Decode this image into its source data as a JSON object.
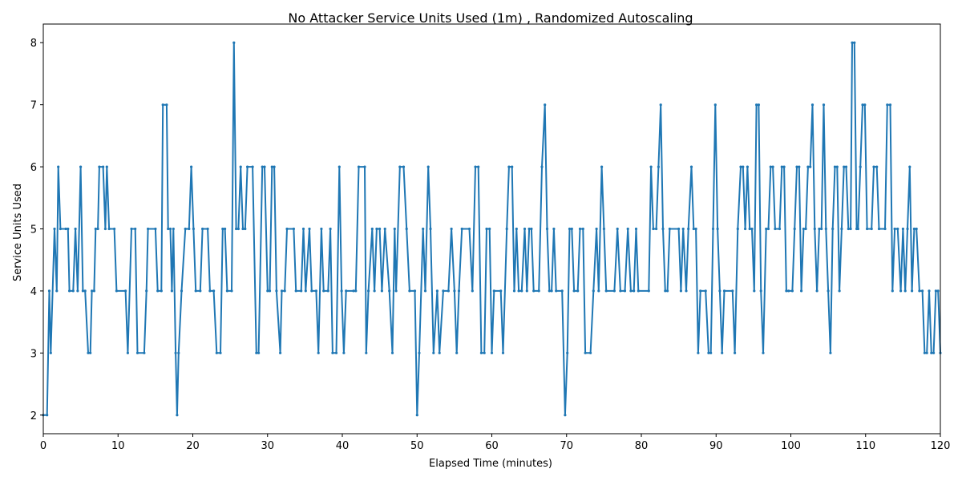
{
  "chart_data": {
    "type": "line",
    "title": "No Attacker Service Units Used (1m) , Randomized Autoscaling",
    "xlabel": "Elapsed Time (minutes)",
    "ylabel": "Service Units Used",
    "xlim": [
      0,
      120
    ],
    "ylim": [
      1.7,
      8.3
    ],
    "xticks": [
      0,
      10,
      20,
      30,
      40,
      50,
      60,
      70,
      80,
      90,
      100,
      110,
      120
    ],
    "yticks": [
      2,
      3,
      4,
      5,
      6,
      7,
      8
    ],
    "grid": false,
    "legend": "none",
    "series": [
      {
        "color": "#1f77b4",
        "marker": "dot",
        "points": [
          [
            0,
            2
          ],
          [
            0.5,
            2
          ],
          [
            0.8,
            4
          ],
          [
            1.0,
            3
          ],
          [
            1.5,
            5
          ],
          [
            1.8,
            4
          ],
          [
            2.0,
            6
          ],
          [
            2.3,
            5
          ],
          [
            3.0,
            5
          ],
          [
            3.3,
            5
          ],
          [
            3.5,
            4
          ],
          [
            4.0,
            4
          ],
          [
            4.3,
            5
          ],
          [
            4.6,
            4
          ],
          [
            5.0,
            6
          ],
          [
            5.3,
            4
          ],
          [
            5.6,
            4
          ],
          [
            6.0,
            3
          ],
          [
            6.3,
            3
          ],
          [
            6.5,
            4
          ],
          [
            6.8,
            4
          ],
          [
            7.0,
            5
          ],
          [
            7.3,
            5
          ],
          [
            7.5,
            6
          ],
          [
            8.0,
            6
          ],
          [
            8.3,
            5
          ],
          [
            8.5,
            6
          ],
          [
            8.8,
            5
          ],
          [
            9.5,
            5
          ],
          [
            9.8,
            4
          ],
          [
            11.0,
            4
          ],
          [
            11.3,
            3
          ],
          [
            11.8,
            5
          ],
          [
            12.3,
            5
          ],
          [
            12.6,
            3
          ],
          [
            13.5,
            3
          ],
          [
            13.8,
            4
          ],
          [
            14.0,
            5
          ],
          [
            15.0,
            5
          ],
          [
            15.3,
            4
          ],
          [
            15.8,
            4
          ],
          [
            16.0,
            7
          ],
          [
            16.5,
            7
          ],
          [
            16.7,
            5
          ],
          [
            17.0,
            5
          ],
          [
            17.2,
            4
          ],
          [
            17.4,
            5
          ],
          [
            17.7,
            3
          ],
          [
            17.9,
            2
          ],
          [
            18.1,
            3
          ],
          [
            18.5,
            4
          ],
          [
            19.0,
            5
          ],
          [
            19.5,
            5
          ],
          [
            19.8,
            6
          ],
          [
            20.1,
            5
          ],
          [
            20.4,
            4
          ],
          [
            21.0,
            4
          ],
          [
            21.3,
            5
          ],
          [
            22.0,
            5
          ],
          [
            22.3,
            4
          ],
          [
            22.8,
            4
          ],
          [
            23.2,
            3
          ],
          [
            23.7,
            3
          ],
          [
            24.0,
            5
          ],
          [
            24.3,
            5
          ],
          [
            24.6,
            4
          ],
          [
            25.2,
            4
          ],
          [
            25.5,
            8
          ],
          [
            25.8,
            5
          ],
          [
            26.1,
            5
          ],
          [
            26.4,
            6
          ],
          [
            26.7,
            5
          ],
          [
            27.0,
            5
          ],
          [
            27.3,
            6
          ],
          [
            28.0,
            6
          ],
          [
            28.5,
            3
          ],
          [
            28.8,
            3
          ],
          [
            29.3,
            6
          ],
          [
            29.6,
            6
          ],
          [
            30.0,
            4
          ],
          [
            30.3,
            4
          ],
          [
            30.6,
            6
          ],
          [
            30.9,
            6
          ],
          [
            31.2,
            4
          ],
          [
            31.7,
            3
          ],
          [
            31.9,
            4
          ],
          [
            32.3,
            4
          ],
          [
            32.6,
            5
          ],
          [
            33.5,
            5
          ],
          [
            33.8,
            4
          ],
          [
            34.5,
            4
          ],
          [
            34.8,
            5
          ],
          [
            35.1,
            4
          ],
          [
            35.6,
            5
          ],
          [
            35.9,
            4
          ],
          [
            36.5,
            4
          ],
          [
            36.8,
            3
          ],
          [
            37.2,
            5
          ],
          [
            37.5,
            4
          ],
          [
            38.1,
            4
          ],
          [
            38.4,
            5
          ],
          [
            38.7,
            3
          ],
          [
            39.2,
            3
          ],
          [
            39.6,
            6
          ],
          [
            39.9,
            4
          ],
          [
            40.2,
            3
          ],
          [
            40.5,
            4
          ],
          [
            41.5,
            4
          ],
          [
            41.8,
            4
          ],
          [
            42.2,
            6
          ],
          [
            43.0,
            6
          ],
          [
            43.2,
            3
          ],
          [
            43.5,
            4
          ],
          [
            44.0,
            5
          ],
          [
            44.3,
            4
          ],
          [
            44.6,
            5
          ],
          [
            45.0,
            5
          ],
          [
            45.3,
            4
          ],
          [
            45.7,
            5
          ],
          [
            46.3,
            4
          ],
          [
            46.7,
            3
          ],
          [
            47.0,
            5
          ],
          [
            47.2,
            4
          ],
          [
            47.7,
            6
          ],
          [
            48.2,
            6
          ],
          [
            48.6,
            5
          ],
          [
            49.0,
            4
          ],
          [
            49.7,
            4
          ],
          [
            50.0,
            2
          ],
          [
            50.3,
            3
          ],
          [
            50.8,
            5
          ],
          [
            51.1,
            4
          ],
          [
            51.5,
            6
          ],
          [
            51.8,
            5
          ],
          [
            52.2,
            3
          ],
          [
            52.7,
            4
          ],
          [
            53.0,
            3
          ],
          [
            53.5,
            4
          ],
          [
            54.2,
            4
          ],
          [
            54.6,
            5
          ],
          [
            55.0,
            4
          ],
          [
            55.3,
            3
          ],
          [
            55.6,
            4
          ],
          [
            56.0,
            5
          ],
          [
            57.0,
            5
          ],
          [
            57.4,
            4
          ],
          [
            57.8,
            6
          ],
          [
            58.2,
            6
          ],
          [
            58.6,
            3
          ],
          [
            59.0,
            3
          ],
          [
            59.3,
            5
          ],
          [
            59.7,
            5
          ],
          [
            60.0,
            3
          ],
          [
            60.3,
            4
          ],
          [
            61.2,
            4
          ],
          [
            61.5,
            3
          ],
          [
            62.0,
            5
          ],
          [
            62.3,
            6
          ],
          [
            62.7,
            6
          ],
          [
            63.0,
            4
          ],
          [
            63.3,
            5
          ],
          [
            63.6,
            4
          ],
          [
            64.0,
            4
          ],
          [
            64.4,
            5
          ],
          [
            64.7,
            4
          ],
          [
            65.0,
            5
          ],
          [
            65.3,
            5
          ],
          [
            65.6,
            4
          ],
          [
            66.3,
            4
          ],
          [
            66.7,
            6
          ],
          [
            67.1,
            7
          ],
          [
            67.4,
            5
          ],
          [
            67.7,
            4
          ],
          [
            68.0,
            4
          ],
          [
            68.3,
            5
          ],
          [
            68.6,
            4
          ],
          [
            69.4,
            4
          ],
          [
            69.8,
            2
          ],
          [
            70.1,
            3
          ],
          [
            70.4,
            5
          ],
          [
            70.7,
            5
          ],
          [
            71.0,
            4
          ],
          [
            71.5,
            4
          ],
          [
            71.8,
            5
          ],
          [
            72.2,
            5
          ],
          [
            72.5,
            3
          ],
          [
            73.2,
            3
          ],
          [
            73.6,
            4
          ],
          [
            74.0,
            5
          ],
          [
            74.3,
            4
          ],
          [
            74.7,
            6
          ],
          [
            75.0,
            5
          ],
          [
            75.3,
            4
          ],
          [
            76.4,
            4
          ],
          [
            76.8,
            5
          ],
          [
            77.2,
            4
          ],
          [
            77.8,
            4
          ],
          [
            78.2,
            5
          ],
          [
            78.6,
            4
          ],
          [
            79.0,
            4
          ],
          [
            79.3,
            5
          ],
          [
            79.6,
            4
          ],
          [
            81.0,
            4
          ],
          [
            81.3,
            6
          ],
          [
            81.6,
            5
          ],
          [
            82.0,
            5
          ],
          [
            82.3,
            6
          ],
          [
            82.6,
            7
          ],
          [
            82.9,
            5
          ],
          [
            83.2,
            4
          ],
          [
            83.5,
            4
          ],
          [
            83.8,
            5
          ],
          [
            85.0,
            5
          ],
          [
            85.3,
            4
          ],
          [
            85.6,
            5
          ],
          [
            86.0,
            4
          ],
          [
            86.3,
            5
          ],
          [
            86.7,
            6
          ],
          [
            87.0,
            5
          ],
          [
            87.3,
            5
          ],
          [
            87.6,
            3
          ],
          [
            87.9,
            4
          ],
          [
            88.6,
            4
          ],
          [
            89.0,
            3
          ],
          [
            89.3,
            3
          ],
          [
            89.6,
            5
          ],
          [
            89.9,
            7
          ],
          [
            90.2,
            5
          ],
          [
            90.5,
            4
          ],
          [
            90.8,
            3
          ],
          [
            91.1,
            4
          ],
          [
            92.2,
            4
          ],
          [
            92.5,
            3
          ],
          [
            92.9,
            5
          ],
          [
            93.3,
            6
          ],
          [
            93.6,
            6
          ],
          [
            93.9,
            5
          ],
          [
            94.2,
            6
          ],
          [
            94.5,
            5
          ],
          [
            94.8,
            5
          ],
          [
            95.1,
            4
          ],
          [
            95.4,
            7
          ],
          [
            95.7,
            7
          ],
          [
            96.0,
            4
          ],
          [
            96.3,
            3
          ],
          [
            96.7,
            5
          ],
          [
            97.0,
            5
          ],
          [
            97.3,
            6
          ],
          [
            97.6,
            6
          ],
          [
            97.9,
            5
          ],
          [
            98.5,
            5
          ],
          [
            98.8,
            6
          ],
          [
            99.1,
            6
          ],
          [
            99.4,
            4
          ],
          [
            99.7,
            4
          ],
          [
            100.2,
            4
          ],
          [
            100.5,
            5
          ],
          [
            100.8,
            6
          ],
          [
            101.1,
            6
          ],
          [
            101.4,
            4
          ],
          [
            101.7,
            5
          ],
          [
            102.0,
            5
          ],
          [
            102.3,
            6
          ],
          [
            102.6,
            6
          ],
          [
            102.9,
            7
          ],
          [
            103.2,
            5
          ],
          [
            103.5,
            4
          ],
          [
            103.8,
            5
          ],
          [
            104.1,
            5
          ],
          [
            104.4,
            7
          ],
          [
            104.7,
            5
          ],
          [
            105.0,
            4
          ],
          [
            105.3,
            3
          ],
          [
            105.6,
            5
          ],
          [
            105.9,
            6
          ],
          [
            106.2,
            6
          ],
          [
            106.5,
            4
          ],
          [
            106.8,
            5
          ],
          [
            107.1,
            6
          ],
          [
            107.4,
            6
          ],
          [
            107.7,
            5
          ],
          [
            108.0,
            5
          ],
          [
            108.2,
            8
          ],
          [
            108.5,
            8
          ],
          [
            108.8,
            5
          ],
          [
            109.0,
            5
          ],
          [
            109.3,
            6
          ],
          [
            109.6,
            7
          ],
          [
            109.9,
            7
          ],
          [
            110.2,
            5
          ],
          [
            110.8,
            5
          ],
          [
            111.1,
            6
          ],
          [
            111.5,
            6
          ],
          [
            111.8,
            5
          ],
          [
            112.6,
            5
          ],
          [
            112.9,
            7
          ],
          [
            113.3,
            7
          ],
          [
            113.6,
            4
          ],
          [
            113.9,
            5
          ],
          [
            114.3,
            5
          ],
          [
            114.7,
            4
          ],
          [
            115.0,
            5
          ],
          [
            115.3,
            4
          ],
          [
            115.6,
            5
          ],
          [
            115.9,
            6
          ],
          [
            116.2,
            4
          ],
          [
            116.5,
            5
          ],
          [
            116.8,
            5
          ],
          [
            117.2,
            4
          ],
          [
            117.6,
            4
          ],
          [
            117.9,
            3
          ],
          [
            118.2,
            3
          ],
          [
            118.5,
            4
          ],
          [
            118.8,
            3
          ],
          [
            119.1,
            3
          ],
          [
            119.4,
            4
          ],
          [
            119.7,
            4
          ],
          [
            120,
            3
          ]
        ]
      }
    ]
  }
}
